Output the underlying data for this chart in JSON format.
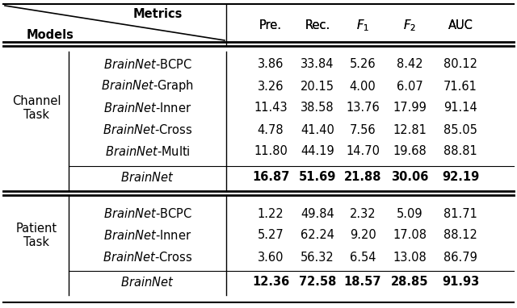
{
  "header_metrics": [
    "Pre.",
    "Rec.",
    "$F_1$",
    "$F_2$",
    "AUC"
  ],
  "channel_task_rows": [
    {
      "label": "$\\mathit{BrainNet}$-BCPC",
      "values": [
        "3.86",
        "33.84",
        "5.26",
        "8.42",
        "80.12"
      ]
    },
    {
      "label": "$\\mathit{BrainNet}$-Graph",
      "values": [
        "3.26",
        "20.15",
        "4.00",
        "6.07",
        "71.61"
      ]
    },
    {
      "label": "$\\mathit{BrainNet}$-Inner",
      "values": [
        "11.43",
        "38.58",
        "13.76",
        "17.99",
        "91.14"
      ]
    },
    {
      "label": "$\\mathit{BrainNet}$-Cross",
      "values": [
        "4.78",
        "41.40",
        "7.56",
        "12.81",
        "85.05"
      ]
    },
    {
      "label": "$\\mathit{BrainNet}$-Multi",
      "values": [
        "11.80",
        "44.19",
        "14.70",
        "19.68",
        "88.81"
      ]
    }
  ],
  "channel_best": {
    "label": "$\\mathit{BrainNet}$",
    "values": [
      "16.87",
      "51.69",
      "21.88",
      "30.06",
      "92.19"
    ]
  },
  "patient_task_rows": [
    {
      "label": "$\\mathit{BrainNet}$-BCPC",
      "values": [
        "1.22",
        "49.84",
        "2.32",
        "5.09",
        "81.71"
      ]
    },
    {
      "label": "$\\mathit{BrainNet}$-Inner",
      "values": [
        "5.27",
        "62.24",
        "9.20",
        "17.08",
        "88.12"
      ]
    },
    {
      "label": "$\\mathit{BrainNet}$-Cross",
      "values": [
        "3.60",
        "56.32",
        "6.54",
        "13.08",
        "86.79"
      ]
    }
  ],
  "patient_best": {
    "label": "$\\mathit{BrainNet}$",
    "values": [
      "12.36",
      "72.58",
      "18.57",
      "28.85",
      "91.93"
    ]
  },
  "background_color": "#ffffff"
}
